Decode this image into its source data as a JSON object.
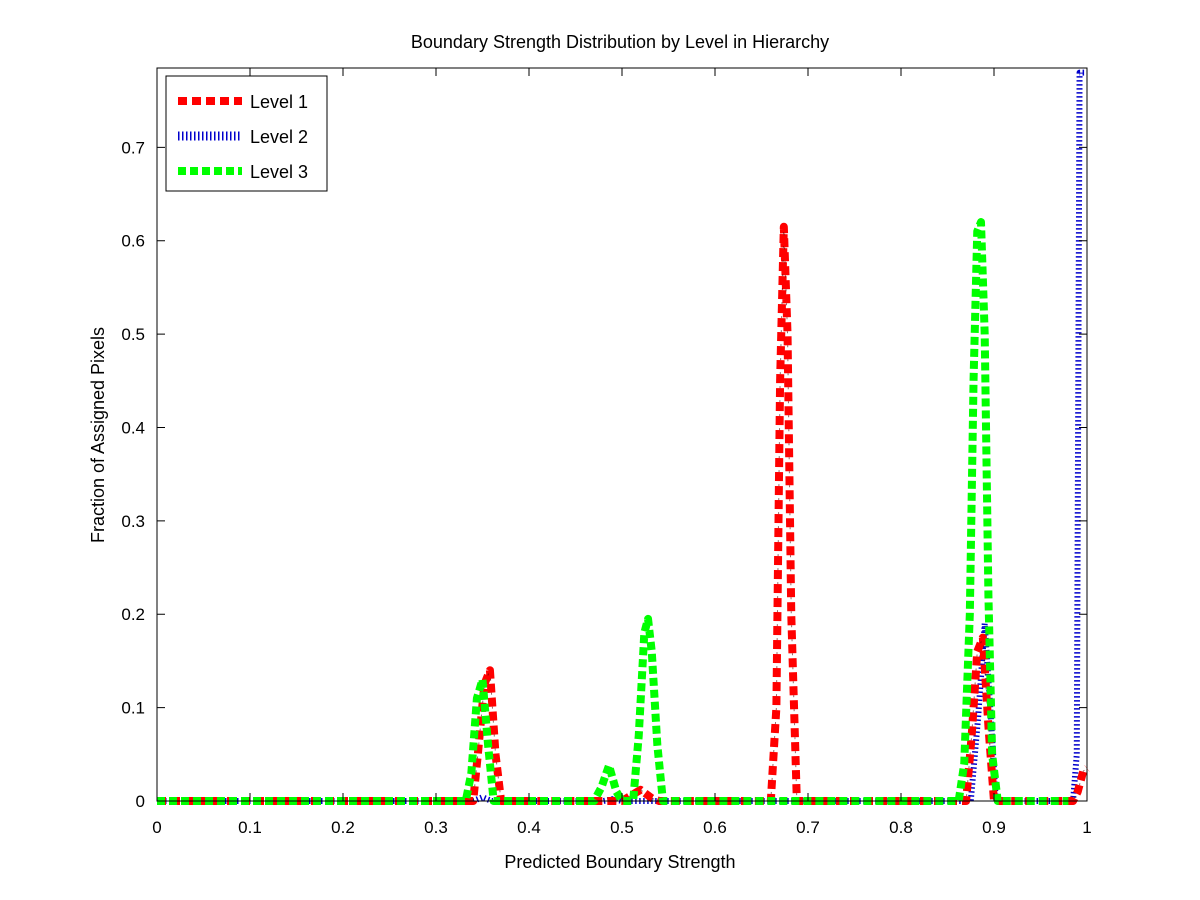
{
  "chart_data": {
    "type": "line",
    "title": "Boundary Strength Distribution by Level in Hierarchy",
    "xlabel": "Predicted Boundary Strength",
    "ylabel": "Fraction of Assigned Pixels",
    "xlim": [
      0,
      1
    ],
    "ylim": [
      0,
      0.785
    ],
    "xticks": [
      "0",
      "0.1",
      "0.2",
      "0.3",
      "0.4",
      "0.5",
      "0.6",
      "0.7",
      "0.8",
      "0.9",
      "1"
    ],
    "yticks": [
      "0",
      "0.1",
      "0.2",
      "0.3",
      "0.4",
      "0.5",
      "0.6",
      "0.7"
    ],
    "grid": false,
    "legend": "top-left",
    "series": [
      {
        "name": "Level 1",
        "color": "#ff0000",
        "points": [
          [
            0.0,
            0.0
          ],
          [
            0.34,
            0.0
          ],
          [
            0.345,
            0.05
          ],
          [
            0.352,
            0.125
          ],
          [
            0.358,
            0.14
          ],
          [
            0.364,
            0.05
          ],
          [
            0.37,
            0.0
          ],
          [
            0.5,
            0.0
          ],
          [
            0.52,
            0.012
          ],
          [
            0.532,
            0.003
          ],
          [
            0.54,
            0.0
          ],
          [
            0.66,
            0.0
          ],
          [
            0.666,
            0.1
          ],
          [
            0.67,
            0.45
          ],
          [
            0.674,
            0.615
          ],
          [
            0.678,
            0.5
          ],
          [
            0.682,
            0.2
          ],
          [
            0.688,
            0.0
          ],
          [
            0.87,
            0.0
          ],
          [
            0.876,
            0.07
          ],
          [
            0.882,
            0.16
          ],
          [
            0.888,
            0.175
          ],
          [
            0.894,
            0.08
          ],
          [
            0.9,
            0.0
          ],
          [
            0.985,
            0.0
          ],
          [
            0.99,
            0.01
          ],
          [
            0.996,
            0.032
          ],
          [
            1.0,
            0.035
          ]
        ]
      },
      {
        "name": "Level 2",
        "color": "#0000cc",
        "points": [
          [
            0.0,
            0.0
          ],
          [
            0.34,
            0.0
          ],
          [
            0.35,
            0.004
          ],
          [
            0.36,
            0.0
          ],
          [
            0.48,
            0.0
          ],
          [
            0.49,
            0.002
          ],
          [
            0.5,
            0.0
          ],
          [
            0.875,
            0.0
          ],
          [
            0.883,
            0.09
          ],
          [
            0.89,
            0.19
          ],
          [
            0.896,
            0.1
          ],
          [
            0.902,
            0.0
          ],
          [
            0.985,
            0.0
          ],
          [
            0.989,
            0.05
          ],
          [
            0.992,
            0.78
          ],
          [
            1.0,
            0.78
          ]
        ]
      },
      {
        "name": "Level 3",
        "color": "#00ff00",
        "points": [
          [
            0.0,
            0.0
          ],
          [
            0.332,
            0.0
          ],
          [
            0.338,
            0.03
          ],
          [
            0.344,
            0.11
          ],
          [
            0.35,
            0.13
          ],
          [
            0.356,
            0.06
          ],
          [
            0.362,
            0.0
          ],
          [
            0.47,
            0.0
          ],
          [
            0.478,
            0.015
          ],
          [
            0.486,
            0.038
          ],
          [
            0.494,
            0.01
          ],
          [
            0.5,
            0.0
          ],
          [
            0.512,
            0.0
          ],
          [
            0.518,
            0.07
          ],
          [
            0.524,
            0.18
          ],
          [
            0.528,
            0.195
          ],
          [
            0.532,
            0.16
          ],
          [
            0.538,
            0.06
          ],
          [
            0.544,
            0.0
          ],
          [
            0.862,
            0.0
          ],
          [
            0.868,
            0.04
          ],
          [
            0.874,
            0.2
          ],
          [
            0.878,
            0.45
          ],
          [
            0.882,
            0.61
          ],
          [
            0.886,
            0.62
          ],
          [
            0.89,
            0.5
          ],
          [
            0.894,
            0.22
          ],
          [
            0.898,
            0.05
          ],
          [
            0.904,
            0.0
          ],
          [
            0.98,
            0.0
          ]
        ]
      }
    ]
  }
}
